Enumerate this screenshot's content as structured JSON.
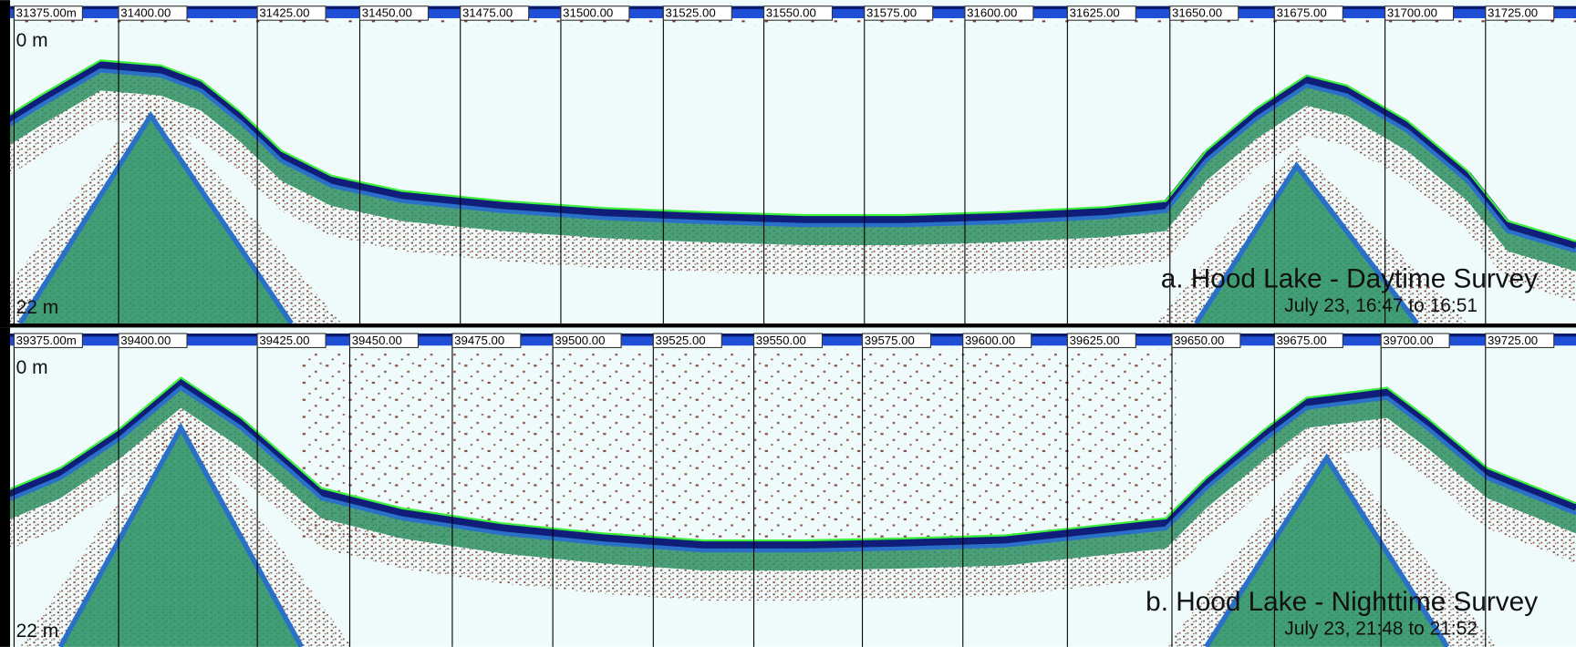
{
  "panels": [
    {
      "ticks": [
        "31375.00m",
        "31400.00",
        "31425.00",
        "31450.00",
        "31475.00",
        "31500.00",
        "31525.00",
        "31550.00",
        "31575.00",
        "31600.00",
        "31625.00",
        "31650.00",
        "31675.00",
        "31700.00",
        "31725.00"
      ],
      "depth_top": "0 m",
      "depth_bottom": "22 m",
      "title": "a.  Hood Lake - Daytime Survey",
      "subtitle": "July 23, 16:47 to 16:51"
    },
    {
      "ticks": [
        "39375.00m",
        "39400.00",
        "39425.00",
        "39450.00",
        "39475.00",
        "39500.00",
        "39525.00",
        "39550.00",
        "39575.00",
        "39600.00",
        "39625.00",
        "39650.00",
        "39675.00",
        "39700.00",
        "39725.00"
      ],
      "depth_top": "0 m",
      "depth_bottom": "22 m",
      "title": "b.  Hood Lake - Nighttime Survey",
      "subtitle": "July 23, 21:48 to 21:52"
    }
  ]
}
